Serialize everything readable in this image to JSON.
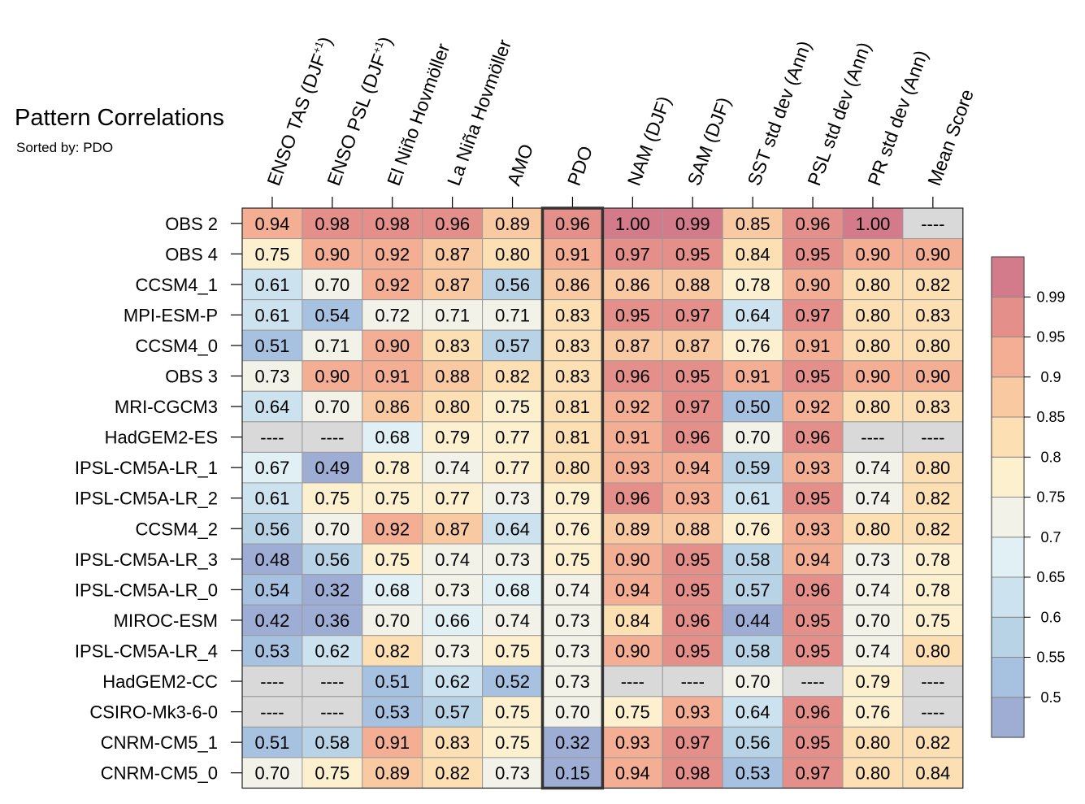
{
  "chart_data": {
    "type": "heatmap",
    "title": "Pattern Correlations",
    "subtitle": "Sorted by: PDO",
    "sorted_column": "PDO",
    "missing_label": "----",
    "columns": [
      {
        "name": "ENSO TAS (DJF",
        "sup": "+1",
        "close": ")"
      },
      {
        "name": "ENSO PSL (DJF",
        "sup": "+1",
        "close": ")"
      },
      {
        "name": "El Niño Hovmöller",
        "sup": "",
        "close": ""
      },
      {
        "name": "La Niña Hovmöller",
        "sup": "",
        "close": ""
      },
      {
        "name": "AMO",
        "sup": "",
        "close": ""
      },
      {
        "name": "PDO",
        "sup": "",
        "close": ""
      },
      {
        "name": "NAM (DJF)",
        "sup": "",
        "close": ""
      },
      {
        "name": "SAM (DJF)",
        "sup": "",
        "close": ""
      },
      {
        "name": "SST std dev (Ann)",
        "sup": "",
        "close": ""
      },
      {
        "name": "PSL std dev (Ann)",
        "sup": "",
        "close": ""
      },
      {
        "name": "PR std dev (Ann)",
        "sup": "",
        "close": ""
      },
      {
        "name": "Mean Score",
        "sup": "",
        "close": ""
      }
    ],
    "rows": [
      {
        "name": "OBS 2",
        "values": [
          "0.94",
          "0.98",
          "0.98",
          "0.96",
          "0.89",
          "0.96",
          "1.00",
          "0.99",
          "0.85",
          "0.96",
          "1.00",
          null
        ]
      },
      {
        "name": "OBS 4",
        "values": [
          "0.75",
          "0.90",
          "0.92",
          "0.87",
          "0.80",
          "0.91",
          "0.97",
          "0.95",
          "0.84",
          "0.95",
          "0.90",
          "0.90"
        ]
      },
      {
        "name": "CCSM4_1",
        "values": [
          "0.61",
          "0.70",
          "0.92",
          "0.87",
          "0.56",
          "0.86",
          "0.86",
          "0.88",
          "0.78",
          "0.90",
          "0.80",
          "0.82"
        ]
      },
      {
        "name": "MPI-ESM-P",
        "values": [
          "0.61",
          "0.54",
          "0.72",
          "0.71",
          "0.71",
          "0.83",
          "0.95",
          "0.97",
          "0.64",
          "0.97",
          "0.80",
          "0.83"
        ]
      },
      {
        "name": "CCSM4_0",
        "values": [
          "0.51",
          "0.71",
          "0.90",
          "0.83",
          "0.57",
          "0.83",
          "0.87",
          "0.87",
          "0.76",
          "0.91",
          "0.80",
          "0.80"
        ]
      },
      {
        "name": "OBS 3",
        "values": [
          "0.73",
          "0.90",
          "0.91",
          "0.88",
          "0.82",
          "0.83",
          "0.96",
          "0.95",
          "0.91",
          "0.95",
          "0.90",
          "0.90"
        ]
      },
      {
        "name": "MRI-CGCM3",
        "values": [
          "0.64",
          "0.70",
          "0.86",
          "0.80",
          "0.75",
          "0.81",
          "0.92",
          "0.97",
          "0.50",
          "0.92",
          "0.80",
          "0.83"
        ]
      },
      {
        "name": "HadGEM2-ES",
        "values": [
          null,
          null,
          "0.68",
          "0.79",
          "0.77",
          "0.81",
          "0.91",
          "0.96",
          "0.70",
          "0.96",
          null,
          null
        ]
      },
      {
        "name": "IPSL-CM5A-LR_1",
        "values": [
          "0.67",
          "0.49",
          "0.78",
          "0.74",
          "0.77",
          "0.80",
          "0.93",
          "0.94",
          "0.59",
          "0.93",
          "0.74",
          "0.80"
        ]
      },
      {
        "name": "IPSL-CM5A-LR_2",
        "values": [
          "0.61",
          "0.75",
          "0.75",
          "0.77",
          "0.73",
          "0.79",
          "0.96",
          "0.93",
          "0.61",
          "0.95",
          "0.74",
          "0.82"
        ]
      },
      {
        "name": "CCSM4_2",
        "values": [
          "0.56",
          "0.70",
          "0.92",
          "0.87",
          "0.64",
          "0.76",
          "0.89",
          "0.88",
          "0.76",
          "0.93",
          "0.80",
          "0.82"
        ]
      },
      {
        "name": "IPSL-CM5A-LR_3",
        "values": [
          "0.48",
          "0.56",
          "0.75",
          "0.74",
          "0.73",
          "0.75",
          "0.90",
          "0.95",
          "0.58",
          "0.94",
          "0.73",
          "0.78"
        ]
      },
      {
        "name": "IPSL-CM5A-LR_0",
        "values": [
          "0.54",
          "0.32",
          "0.68",
          "0.73",
          "0.68",
          "0.74",
          "0.94",
          "0.95",
          "0.57",
          "0.96",
          "0.74",
          "0.78"
        ]
      },
      {
        "name": "MIROC-ESM",
        "values": [
          "0.42",
          "0.36",
          "0.70",
          "0.66",
          "0.74",
          "0.73",
          "0.84",
          "0.96",
          "0.44",
          "0.95",
          "0.70",
          "0.75"
        ]
      },
      {
        "name": "IPSL-CM5A-LR_4",
        "values": [
          "0.53",
          "0.62",
          "0.82",
          "0.73",
          "0.75",
          "0.73",
          "0.90",
          "0.95",
          "0.58",
          "0.95",
          "0.74",
          "0.80"
        ]
      },
      {
        "name": "HadGEM2-CC",
        "values": [
          null,
          null,
          "0.51",
          "0.62",
          "0.52",
          "0.73",
          null,
          null,
          "0.70",
          null,
          "0.79",
          null
        ]
      },
      {
        "name": "CSIRO-Mk3-6-0",
        "values": [
          null,
          null,
          "0.53",
          "0.57",
          "0.75",
          "0.70",
          "0.75",
          "0.93",
          "0.64",
          "0.96",
          "0.76",
          null
        ]
      },
      {
        "name": "CNRM-CM5_1",
        "values": [
          "0.51",
          "0.58",
          "0.91",
          "0.83",
          "0.75",
          "0.32",
          "0.93",
          "0.97",
          "0.56",
          "0.95",
          "0.80",
          "0.82"
        ]
      },
      {
        "name": "CNRM-CM5_0",
        "values": [
          "0.70",
          "0.75",
          "0.89",
          "0.82",
          "0.73",
          "0.15",
          "0.94",
          "0.98",
          "0.53",
          "0.97",
          "0.80",
          "0.84"
        ]
      }
    ],
    "colorbar": {
      "levels": [
        "0.99",
        "0.95",
        "0.9",
        "0.85",
        "0.8",
        "0.75",
        "0.7",
        "0.65",
        "0.6",
        "0.55",
        "0.5"
      ],
      "thresholds": [
        0.5,
        0.55,
        0.6,
        0.65,
        0.7,
        0.75,
        0.8,
        0.85,
        0.9,
        0.95,
        0.99
      ],
      "colors": [
        "#9dadd4",
        "#a7c1e0",
        "#b8d3e6",
        "#cce2ee",
        "#e1f0f5",
        "#f2f2e9",
        "#fdf0cf",
        "#fcdfb3",
        "#f9c9a1",
        "#f4ae93",
        "#e58f8a",
        "#d47b8b"
      ]
    },
    "missing_color": "#d9d9d9"
  }
}
